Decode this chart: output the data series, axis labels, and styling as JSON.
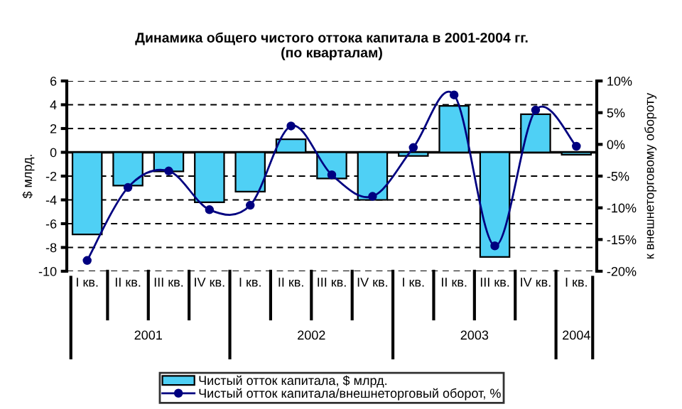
{
  "chart_data": {
    "type": "bar",
    "title": "Динамика общего чистого оттока капитала в 2001-2004 гг.\n(по кварталам)",
    "ylabel": "$ млрд.",
    "y2label": "к внешнеторговому обороту",
    "categories": [
      "I кв.",
      "II кв.",
      "III кв.",
      "IV кв.",
      "I кв.",
      "II кв.",
      "III кв.",
      "IV кв.",
      "I кв.",
      "II кв.",
      "III кв.",
      "IV кв.",
      "I кв."
    ],
    "annotations": [
      "2001",
      "2002",
      "2003",
      "2004"
    ],
    "series": [
      {
        "name": "Чистый отток капитала, $ млрд.",
        "color": "#4fd0f5",
        "values": [
          -6.9,
          -2.8,
          -1.6,
          -4.2,
          -3.3,
          1.1,
          -2.2,
          -4.0,
          -0.3,
          3.9,
          -8.8,
          3.2,
          -0.2
        ]
      },
      {
        "name": "Чистый отток капитала/внешнеторговый оборот, %",
        "type": "line",
        "axis": "y2",
        "color": "#000080",
        "marker": "circle",
        "values": [
          -18.3,
          -6.8,
          -4.2,
          -10.3,
          -9.6,
          2.9,
          -4.8,
          -8.2,
          -0.5,
          7.8,
          -16.0,
          5.4,
          -0.3
        ]
      }
    ],
    "ylim": [
      -10,
      6
    ],
    "yticks": [
      -10,
      -8,
      -6,
      -4,
      -2,
      0,
      2,
      4,
      6
    ],
    "y2lim": [
      -20,
      10
    ],
    "y2ticks": [
      {
        "value": -20,
        "label": "-20%"
      },
      {
        "value": -15,
        "label": "-15%"
      },
      {
        "value": -10,
        "label": "-10%"
      },
      {
        "value": -5,
        "label": "-5%"
      },
      {
        "value": 0,
        "label": "0%"
      },
      {
        "value": 5,
        "label": "5%"
      },
      {
        "value": 10,
        "label": "10%"
      }
    ],
    "grid": "y",
    "legend": "bottom"
  }
}
